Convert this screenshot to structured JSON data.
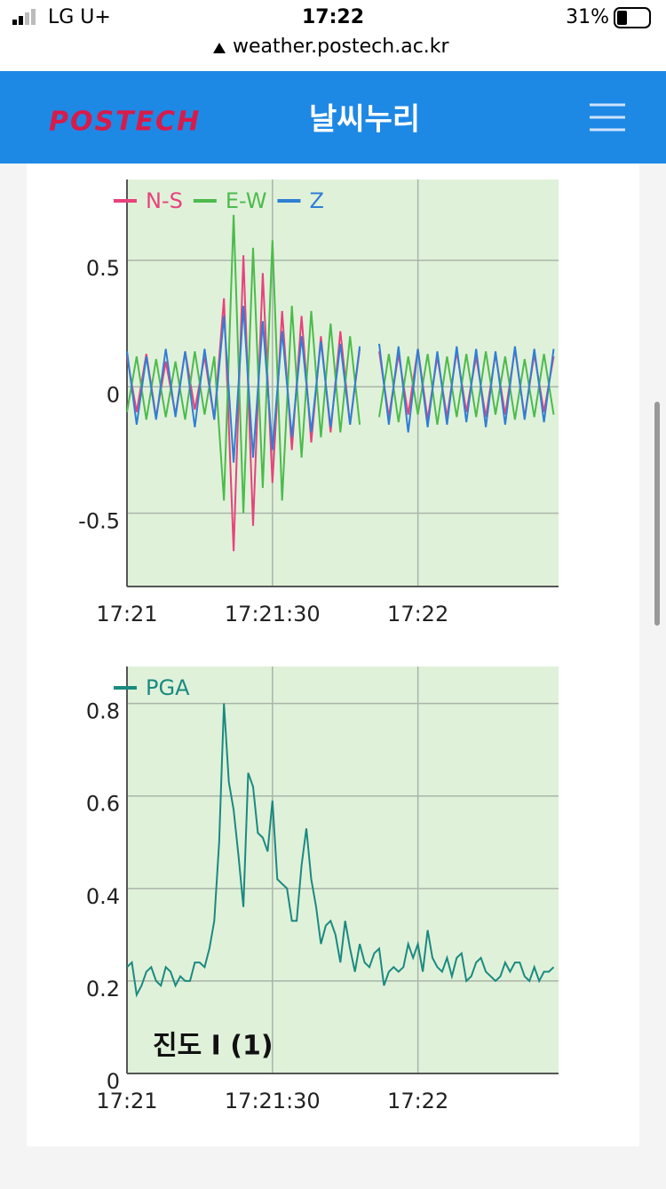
{
  "status_bar": {
    "carrier": "LG U+",
    "time": "17:22",
    "battery": "31%",
    "url": "weather.postech.ac.kr"
  },
  "header": {
    "logo": "POSTECH",
    "title": "날씨누리"
  },
  "chart_data": [
    {
      "type": "line",
      "grid": true,
      "x": [
        "17:21:00",
        "17:21:02",
        "17:21:04",
        "17:21:06",
        "17:21:08",
        "17:21:10",
        "17:21:12",
        "17:21:14",
        "17:21:16",
        "17:21:18",
        "17:21:20",
        "17:21:22",
        "17:21:24",
        "17:21:26",
        "17:21:28",
        "17:21:30",
        "17:21:32",
        "17:21:34",
        "17:21:36",
        "17:21:38",
        "17:21:40",
        "17:21:42",
        "17:21:44",
        "17:21:46",
        "17:21:48",
        "17:21:50",
        "17:21:52",
        "17:21:54",
        "17:21:56",
        "17:21:58",
        "17:22:00",
        "17:22:02",
        "17:22:04",
        "17:22:06",
        "17:22:08",
        "17:22:10",
        "17:22:12",
        "17:22:14",
        "17:22:16",
        "17:22:18",
        "17:22:20",
        "17:22:22",
        "17:22:24",
        "17:22:26",
        "17:22:28"
      ],
      "series": [
        {
          "name": "N-S",
          "color": "#e8427c",
          "values": [
            0.12,
            -0.1,
            0.13,
            -0.12,
            0.1,
            -0.11,
            0.14,
            -0.09,
            0.12,
            -0.13,
            0.35,
            -0.65,
            0.52,
            -0.55,
            0.45,
            -0.38,
            0.3,
            -0.25,
            0.28,
            -0.22,
            0.2,
            -0.18,
            0.22,
            -0.15,
            0.15,
            null,
            0.14,
            -0.12,
            0.13,
            -0.11,
            0.15,
            -0.13,
            0.12,
            -0.12,
            0.14,
            -0.1,
            0.12,
            -0.12,
            0.13,
            -0.11,
            0.15,
            -0.12,
            0.13,
            -0.1,
            0.12
          ]
        },
        {
          "name": "E-W",
          "color": "#4cbb4c",
          "values": [
            -0.1,
            0.12,
            -0.13,
            0.11,
            -0.12,
            0.1,
            -0.13,
            0.14,
            -0.11,
            0.12,
            -0.45,
            0.68,
            -0.5,
            0.55,
            -0.4,
            0.58,
            -0.45,
            0.32,
            -0.28,
            0.3,
            -0.2,
            0.25,
            -0.18,
            0.2,
            -0.15,
            null,
            -0.12,
            0.13,
            -0.14,
            0.12,
            -0.11,
            0.13,
            -0.15,
            0.12,
            -0.12,
            0.13,
            -0.12,
            0.14,
            -0.11,
            0.12,
            -0.13,
            0.11,
            -0.12,
            0.13,
            -0.11
          ]
        },
        {
          "name": "Z",
          "color": "#2f7fd4",
          "values": [
            0.14,
            -0.15,
            0.12,
            -0.13,
            0.15,
            -0.12,
            0.14,
            -0.16,
            0.15,
            -0.13,
            0.28,
            -0.3,
            0.32,
            -0.28,
            0.26,
            -0.25,
            0.22,
            -0.2,
            0.2,
            -0.18,
            0.18,
            -0.16,
            0.17,
            -0.15,
            0.16,
            null,
            0.17,
            -0.15,
            0.16,
            -0.18,
            0.15,
            -0.16,
            0.14,
            -0.15,
            0.16,
            -0.14,
            0.15,
            -0.16,
            0.14,
            -0.15,
            0.16,
            -0.13,
            0.15,
            -0.14,
            0.15
          ]
        }
      ],
      "xlim": [
        "17:21:00",
        "17:22:29"
      ],
      "xticks": [
        {
          "value": "17:21:00",
          "label": "17:21"
        },
        {
          "value": "17:21:30",
          "label": "17:21:30"
        },
        {
          "value": "17:22:00",
          "label": "17:22"
        }
      ],
      "ylim": [
        -0.79,
        0.82
      ],
      "yticks": [
        0.5,
        0,
        -0.5
      ]
    },
    {
      "type": "line",
      "grid": true,
      "annotation": "진도 I (1)",
      "x": [
        "17:21:00",
        "17:21:01",
        "17:21:02",
        "17:21:03",
        "17:21:04",
        "17:21:05",
        "17:21:06",
        "17:21:07",
        "17:21:08",
        "17:21:09",
        "17:21:10",
        "17:21:11",
        "17:21:12",
        "17:21:13",
        "17:21:14",
        "17:21:15",
        "17:21:16",
        "17:21:17",
        "17:21:18",
        "17:21:19",
        "17:21:20",
        "17:21:21",
        "17:21:22",
        "17:21:23",
        "17:21:24",
        "17:21:25",
        "17:21:26",
        "17:21:27",
        "17:21:28",
        "17:21:29",
        "17:21:30",
        "17:21:31",
        "17:21:32",
        "17:21:33",
        "17:21:34",
        "17:21:35",
        "17:21:36",
        "17:21:37",
        "17:21:38",
        "17:21:39",
        "17:21:40",
        "17:21:41",
        "17:21:42",
        "17:21:43",
        "17:21:44",
        "17:21:45",
        "17:21:46",
        "17:21:47",
        "17:21:48",
        "17:21:49",
        "17:21:50",
        "17:21:51",
        "17:21:52",
        "17:21:53",
        "17:21:54",
        "17:21:55",
        "17:21:56",
        "17:21:57",
        "17:21:58",
        "17:21:59",
        "17:22:00",
        "17:22:01",
        "17:22:02",
        "17:22:03",
        "17:22:04",
        "17:22:05",
        "17:22:06",
        "17:22:07",
        "17:22:08",
        "17:22:09",
        "17:22:10",
        "17:22:11",
        "17:22:12",
        "17:22:13",
        "17:22:14",
        "17:22:15",
        "17:22:16",
        "17:22:17",
        "17:22:18",
        "17:22:19",
        "17:22:20",
        "17:22:21",
        "17:22:22",
        "17:22:23",
        "17:22:24",
        "17:22:25",
        "17:22:26",
        "17:22:27",
        "17:22:28"
      ],
      "series": [
        {
          "name": "PGA",
          "color": "#1a8a80",
          "values": [
            0.23,
            0.24,
            0.17,
            0.19,
            0.22,
            0.23,
            0.2,
            0.19,
            0.23,
            0.22,
            0.19,
            0.21,
            0.2,
            0.2,
            0.24,
            0.24,
            0.23,
            0.27,
            0.33,
            0.5,
            0.8,
            0.63,
            0.57,
            0.47,
            0.36,
            0.65,
            0.62,
            0.52,
            0.51,
            0.48,
            0.59,
            0.42,
            0.41,
            0.4,
            0.33,
            0.33,
            0.45,
            0.53,
            0.42,
            0.36,
            0.28,
            0.32,
            0.33,
            0.3,
            0.24,
            0.33,
            0.27,
            0.22,
            0.28,
            0.24,
            0.23,
            0.26,
            0.27,
            0.19,
            0.22,
            0.23,
            0.22,
            0.23,
            0.28,
            0.25,
            0.28,
            0.22,
            0.31,
            0.25,
            0.23,
            0.22,
            0.25,
            0.21,
            0.25,
            0.26,
            0.2,
            0.21,
            0.24,
            0.25,
            0.22,
            0.21,
            0.2,
            0.21,
            0.24,
            0.22,
            0.24,
            0.24,
            0.21,
            0.2,
            0.23,
            0.2,
            0.22,
            0.22,
            0.23
          ]
        }
      ],
      "xlim": [
        "17:21:00",
        "17:22:29"
      ],
      "xticks": [
        {
          "value": "17:21:00",
          "label": "17:21"
        },
        {
          "value": "17:21:30",
          "label": "17:21:30"
        },
        {
          "value": "17:22:00",
          "label": "17:22"
        }
      ],
      "ylim": [
        0,
        0.88
      ],
      "yticks": [
        0,
        0.2,
        0.4,
        0.6,
        0.8
      ]
    }
  ]
}
